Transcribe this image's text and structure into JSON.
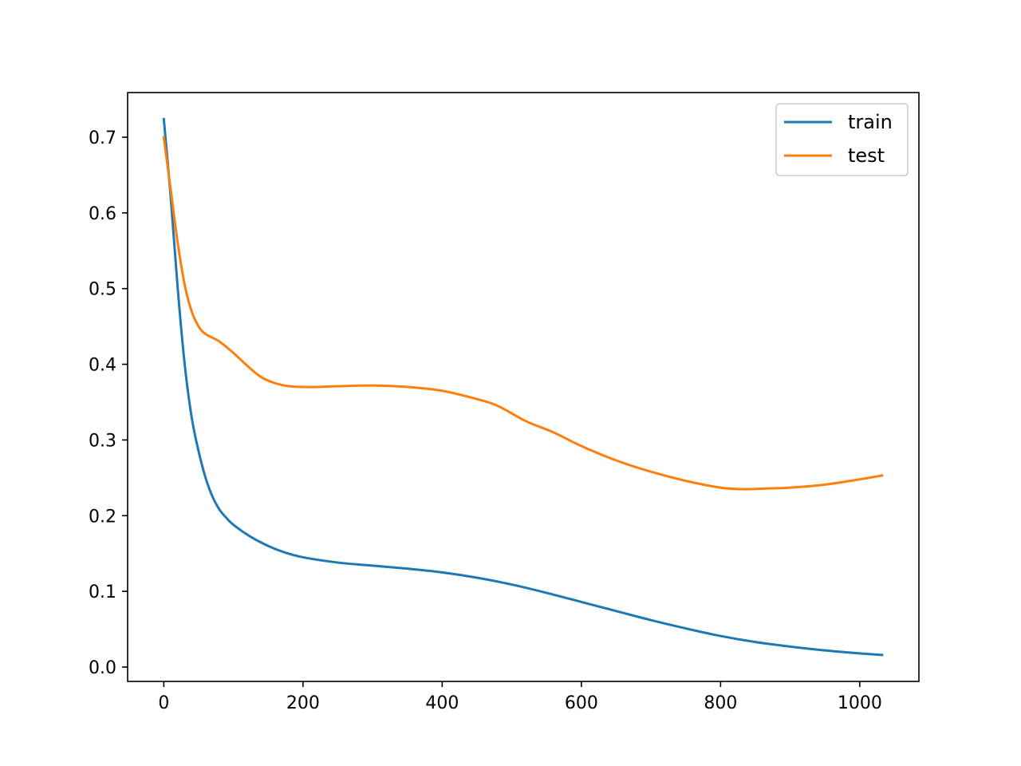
{
  "chart_data": {
    "type": "line",
    "title": "",
    "xlabel": "",
    "ylabel": "",
    "xlim": [
      -52,
      1085
    ],
    "ylim": [
      -0.019,
      0.759
    ],
    "xticks": [
      0,
      200,
      400,
      600,
      800,
      1000
    ],
    "yticks": [
      0.0,
      0.1,
      0.2,
      0.3,
      0.4,
      0.5,
      0.6,
      0.7
    ],
    "xtick_labels": [
      "0",
      "200",
      "400",
      "600",
      "800",
      "1000"
    ],
    "ytick_labels": [
      "0.0",
      "0.1",
      "0.2",
      "0.3",
      "0.4",
      "0.5",
      "0.6",
      "0.7"
    ],
    "grid": false,
    "legend_position": "top-right",
    "series": [
      {
        "name": "train",
        "color": "#1f77b4",
        "x": [
          0,
          10,
          20,
          30,
          40,
          50,
          60,
          70,
          80,
          90,
          100,
          125,
          150,
          175,
          200,
          250,
          300,
          350,
          400,
          450,
          500,
          550,
          600,
          650,
          700,
          750,
          800,
          850,
          900,
          950,
          1000,
          1032
        ],
        "y": [
          0.724,
          0.62,
          0.5,
          0.4,
          0.33,
          0.285,
          0.25,
          0.225,
          0.208,
          0.197,
          0.188,
          0.172,
          0.16,
          0.151,
          0.145,
          0.138,
          0.134,
          0.13,
          0.125,
          0.118,
          0.109,
          0.098,
          0.086,
          0.074,
          0.062,
          0.051,
          0.041,
          0.033,
          0.027,
          0.022,
          0.018,
          0.016
        ]
      },
      {
        "name": "test",
        "color": "#ff7f0e",
        "x": [
          0,
          10,
          20,
          30,
          40,
          50,
          60,
          80,
          100,
          120,
          140,
          160,
          180,
          200,
          220,
          250,
          300,
          350,
          400,
          450,
          480,
          520,
          560,
          600,
          650,
          700,
          750,
          800,
          830,
          870,
          900,
          950,
          1000,
          1032
        ],
        "y": [
          0.7,
          0.63,
          0.56,
          0.505,
          0.47,
          0.45,
          0.44,
          0.43,
          0.415,
          0.398,
          0.383,
          0.375,
          0.371,
          0.37,
          0.37,
          0.371,
          0.372,
          0.37,
          0.365,
          0.354,
          0.345,
          0.325,
          0.31,
          0.292,
          0.273,
          0.258,
          0.246,
          0.237,
          0.235,
          0.236,
          0.237,
          0.241,
          0.248,
          0.253
        ]
      }
    ]
  }
}
